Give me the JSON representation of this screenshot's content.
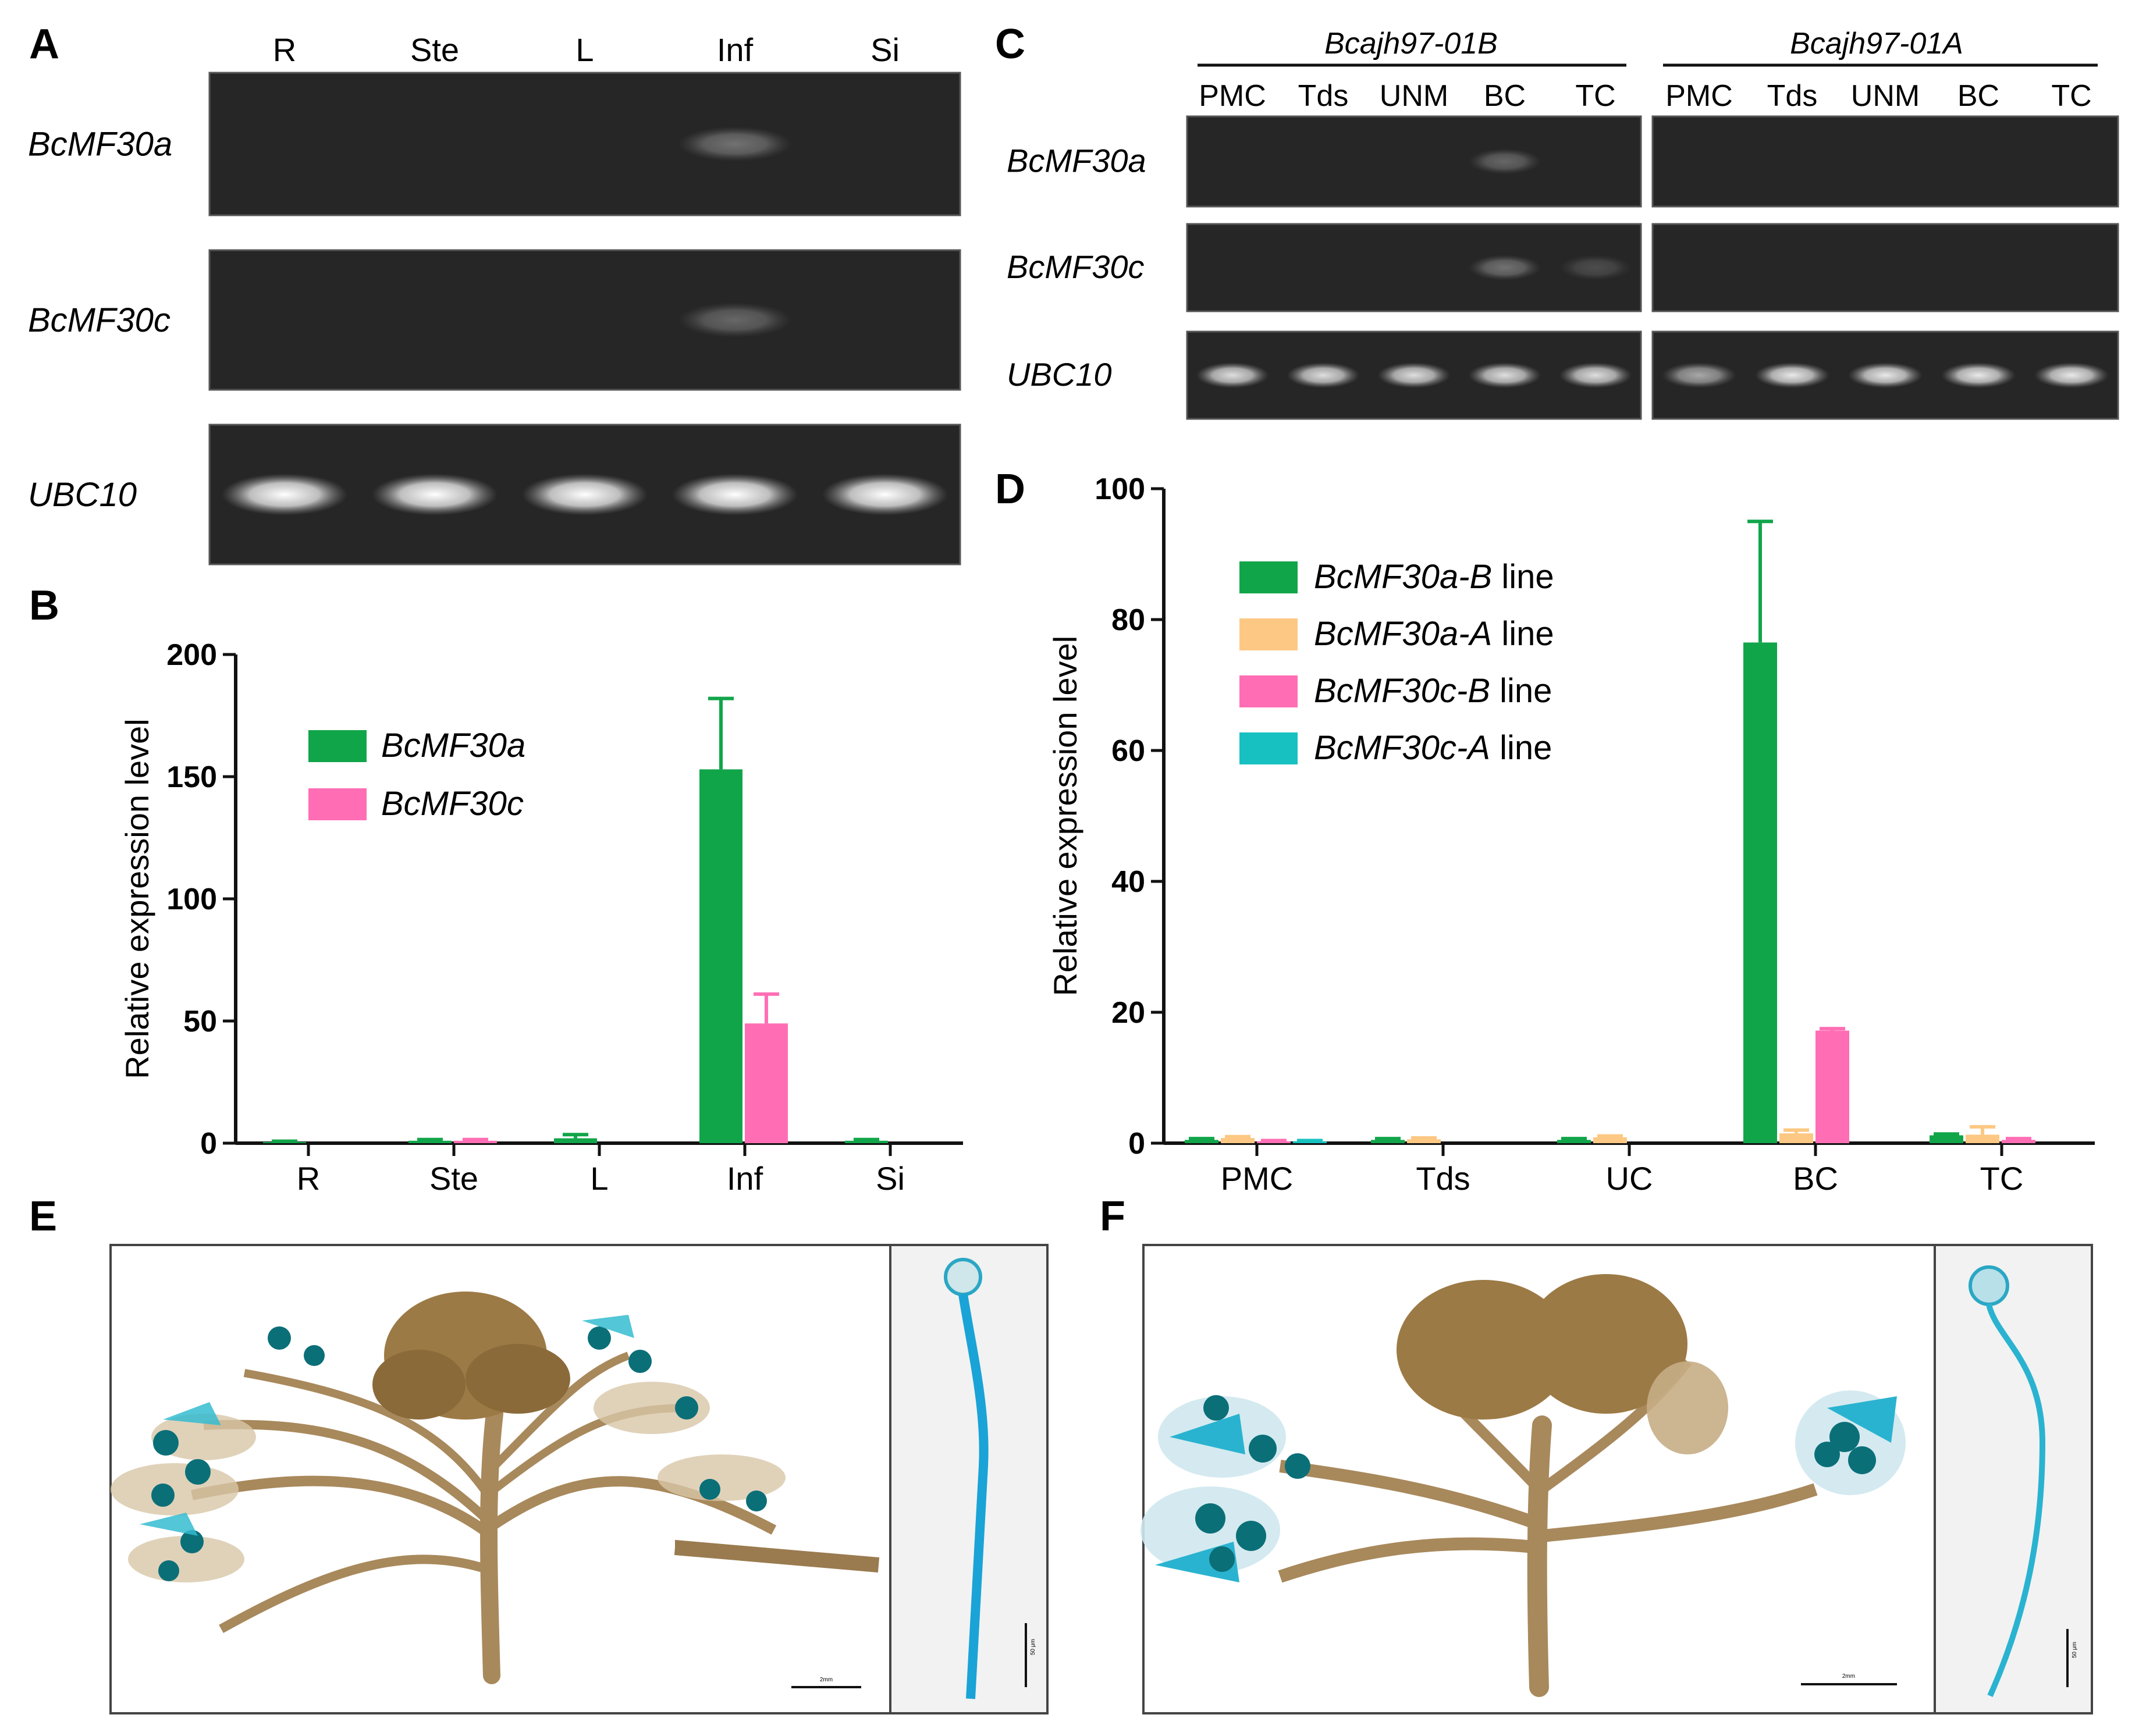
{
  "panels": {
    "A": {
      "letter": "A",
      "lanes": [
        "R",
        "Ste",
        "L",
        "Inf",
        "Si"
      ],
      "rows": [
        {
          "label": "BcMF30a",
          "bands": [
            0,
            0,
            0,
            0.35,
            0
          ]
        },
        {
          "label": "BcMF30c",
          "bands": [
            0,
            0,
            0,
            0.3,
            0
          ]
        },
        {
          "label": "UBC10",
          "bands": [
            1,
            1,
            1,
            1,
            1
          ]
        }
      ]
    },
    "B": {
      "letter": "B",
      "ylabel": "Relative expression level",
      "yticks": [
        "0",
        "50",
        "100",
        "150",
        "200"
      ],
      "legend": [
        "BcMF30a",
        "BcMF30c"
      ]
    },
    "C": {
      "letter": "C",
      "groups": [
        "Bcajh97-01B",
        "Bcajh97-01A"
      ],
      "lanes": [
        "PMC",
        "Tds",
        "UNM",
        "BC",
        "TC"
      ],
      "rows": [
        {
          "label": "BcMF30a",
          "bands_B": [
            0,
            0,
            0,
            0.3,
            0
          ],
          "bands_A": [
            0,
            0,
            0,
            0,
            0
          ]
        },
        {
          "label": "BcMF30c",
          "bands_B": [
            0,
            0,
            0,
            0.35,
            0.18
          ],
          "bands_A": [
            0,
            0,
            0,
            0,
            0
          ]
        },
        {
          "label": "UBC10",
          "bands_B": [
            0.85,
            0.85,
            0.85,
            0.85,
            0.85
          ],
          "bands_A": [
            0.6,
            0.9,
            0.9,
            0.9,
            0.9
          ]
        }
      ]
    },
    "D": {
      "letter": "D",
      "ylabel": "Relative expression level",
      "yticks": [
        "0",
        "20",
        "40",
        "60",
        "80",
        "100"
      ],
      "legend": [
        {
          "gene": "BcMF30a-B",
          "suffix": " line"
        },
        {
          "gene": "BcMF30a-A",
          "suffix": " line"
        },
        {
          "gene": "BcMF30c-B",
          "suffix": " line"
        },
        {
          "gene": "BcMF30c-A",
          "suffix": " line"
        }
      ]
    },
    "E": {
      "letter": "E",
      "scalebar_main": "2mm",
      "scalebar_side": "50 μm"
    },
    "F": {
      "letter": "F",
      "scalebar_main": "2mm",
      "scalebar_side": "50 μm"
    }
  },
  "chart_data": [
    {
      "type": "bar",
      "categories": [
        "R",
        "Ste",
        "L",
        "Inf",
        "Si"
      ],
      "ylabel": "Relative expression level",
      "ylim": [
        0,
        200
      ],
      "series": [
        {
          "name": "BcMF30a",
          "color": "#11a54a",
          "values": [
            0.5,
            1,
            2,
            153,
            1
          ],
          "errors": [
            0.3,
            0.5,
            1.5,
            29,
            0.5
          ]
        },
        {
          "name": "BcMF30c",
          "color": "#ff6eb4",
          "values": [
            0,
            1,
            0,
            49,
            0
          ],
          "errors": [
            0,
            0.5,
            0,
            12,
            0
          ]
        }
      ],
      "legend_position": "top-left"
    },
    {
      "type": "bar",
      "categories": [
        "PMC",
        "Tds",
        "UC",
        "BC",
        "TC"
      ],
      "ylabel": "Relative expression level",
      "ylim": [
        0,
        100
      ],
      "series": [
        {
          "name": "BcMF30a-B line",
          "color": "#11a54a",
          "values": [
            0.5,
            0.5,
            0.5,
            76.5,
            1.2
          ],
          "errors": [
            0.2,
            0.2,
            0.2,
            18.5,
            0.2
          ]
        },
        {
          "name": "BcMF30a-A line",
          "color": "#fdc883",
          "values": [
            0.8,
            0.6,
            0.9,
            1.5,
            1.3
          ],
          "errors": [
            0.2,
            0.2,
            0.2,
            0.5,
            1.2
          ]
        },
        {
          "name": "BcMF30c-B line",
          "color": "#ff6eb4",
          "values": [
            0.3,
            0,
            0,
            17.2,
            0.5
          ],
          "errors": [
            0.1,
            0,
            0,
            0.3,
            0.2
          ]
        },
        {
          "name": "BcMF30c-A line",
          "color": "#17c1c1",
          "values": [
            0.3,
            0,
            0,
            0,
            0
          ],
          "errors": [
            0.1,
            0,
            0,
            0,
            0
          ]
        }
      ],
      "legend_position": "top-left"
    }
  ]
}
